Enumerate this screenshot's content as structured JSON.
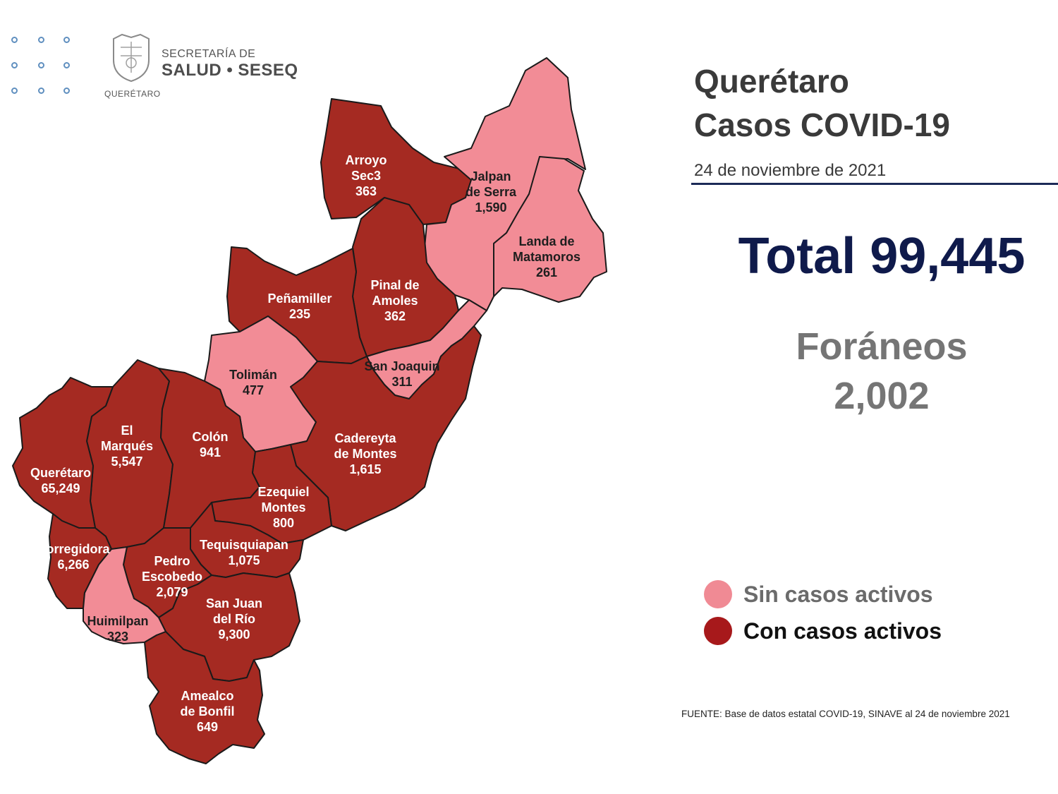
{
  "header": {
    "logo_top": "SECRETARÍA DE",
    "logo_main": "SALUD • SESEQ",
    "logo_sub": "QUERÉTARO",
    "seal_icon": "state-seal-icon"
  },
  "title": {
    "line1": "Querétaro",
    "line2": "Casos COVID-19",
    "date": "24 de noviembre de 2021"
  },
  "totals": {
    "total_label": "Total 99,445",
    "foraneos_label": "Foráneos",
    "foraneos_value": "2,002"
  },
  "legend": [
    {
      "label": "Sin casos activos",
      "color": "#f08a94",
      "text_color": "#6b6b6b"
    },
    {
      "label": "Con casos activos",
      "color": "#a7191b",
      "text_color": "#111111"
    }
  ],
  "source": "FUENTE:  Base de datos estatal  COVID-19,  SINAVE  al 24 de noviembre 2021",
  "colors": {
    "active": "#a52a22",
    "inactive": "#f28c96",
    "border": "#222222"
  },
  "municipalities": [
    {
      "id": "arroyo-seco",
      "name_lines": [
        "Arroyo",
        "Sec3"
      ],
      "cases": "363",
      "status": "active"
    },
    {
      "id": "jalpan",
      "name_lines": [
        "Jalpan",
        "de Serra"
      ],
      "cases": "1,590",
      "status": "inactive"
    },
    {
      "id": "landa",
      "name_lines": [
        "Landa de",
        "Matamoros"
      ],
      "cases": "261",
      "status": "inactive"
    },
    {
      "id": "pinal",
      "name_lines": [
        "Pinal de",
        "Amoles"
      ],
      "cases": "362",
      "status": "active"
    },
    {
      "id": "penamiller",
      "name_lines": [
        "Peñamiller"
      ],
      "cases": "235",
      "status": "active"
    },
    {
      "id": "san-joaquin",
      "name_lines": [
        "San Joaquin"
      ],
      "cases": "311",
      "status": "inactive"
    },
    {
      "id": "toliman",
      "name_lines": [
        "Tolimán"
      ],
      "cases": "477",
      "status": "inactive"
    },
    {
      "id": "cadereyta",
      "name_lines": [
        "Cadereyta",
        "de Montes"
      ],
      "cases": "1,615",
      "status": "active"
    },
    {
      "id": "el-marques",
      "name_lines": [
        "El",
        "Marqués"
      ],
      "cases": "5,547",
      "status": "active"
    },
    {
      "id": "colon",
      "name_lines": [
        "Colón"
      ],
      "cases": "941",
      "status": "active"
    },
    {
      "id": "queretaro",
      "name_lines": [
        "Querétaro"
      ],
      "cases": "65,249",
      "status": "active"
    },
    {
      "id": "ezequiel-montes",
      "name_lines": [
        "Ezequiel",
        "Montes"
      ],
      "cases": "800",
      "status": "active"
    },
    {
      "id": "tequisquiapan",
      "name_lines": [
        "Tequisquiapan"
      ],
      "cases": "1,075",
      "status": "active"
    },
    {
      "id": "corregidora",
      "name_lines": [
        "Corregidora"
      ],
      "cases": "6,266",
      "status": "active"
    },
    {
      "id": "pedro-escobedo",
      "name_lines": [
        "Pedro",
        "Escobedo"
      ],
      "cases": "2,079",
      "status": "active"
    },
    {
      "id": "san-juan",
      "name_lines": [
        "San Juan",
        "del Río"
      ],
      "cases": "9,300",
      "status": "active"
    },
    {
      "id": "huimilpan",
      "name_lines": [
        "Huimilpan"
      ],
      "cases": "323",
      "status": "inactive"
    },
    {
      "id": "amealco",
      "name_lines": [
        "Amealco",
        "de Bonfil"
      ],
      "cases": "649",
      "status": "active"
    }
  ]
}
